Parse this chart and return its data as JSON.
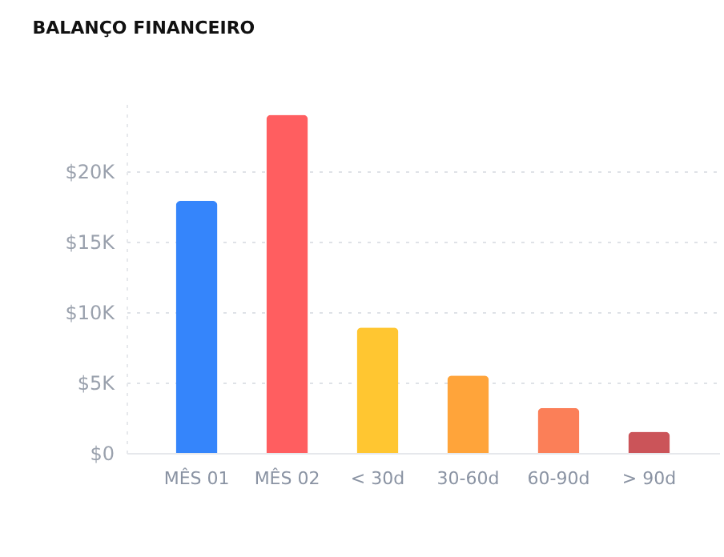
{
  "chart_data": {
    "type": "bar",
    "title": "BALANÇO FINANCEIRO",
    "categories": [
      "MÊS 01",
      "MÊS 02",
      "< 30d",
      "30-60d",
      "60-90d",
      "> 90d"
    ],
    "values": [
      17900,
      24000,
      8900,
      5500,
      3200,
      1500
    ],
    "colors": [
      "#3585fb",
      "#ff5e60",
      "#ffc631",
      "#ffa43a",
      "#fb7f58",
      "#cb5459"
    ],
    "ylim": [
      0,
      25000
    ],
    "yticks": [
      {
        "value": 0,
        "label": "$0"
      },
      {
        "value": 5000,
        "label": "$5K"
      },
      {
        "value": 10000,
        "label": "$10K"
      },
      {
        "value": 15000,
        "label": "$15K"
      },
      {
        "value": 20000,
        "label": "$20K"
      }
    ],
    "grid": true
  }
}
